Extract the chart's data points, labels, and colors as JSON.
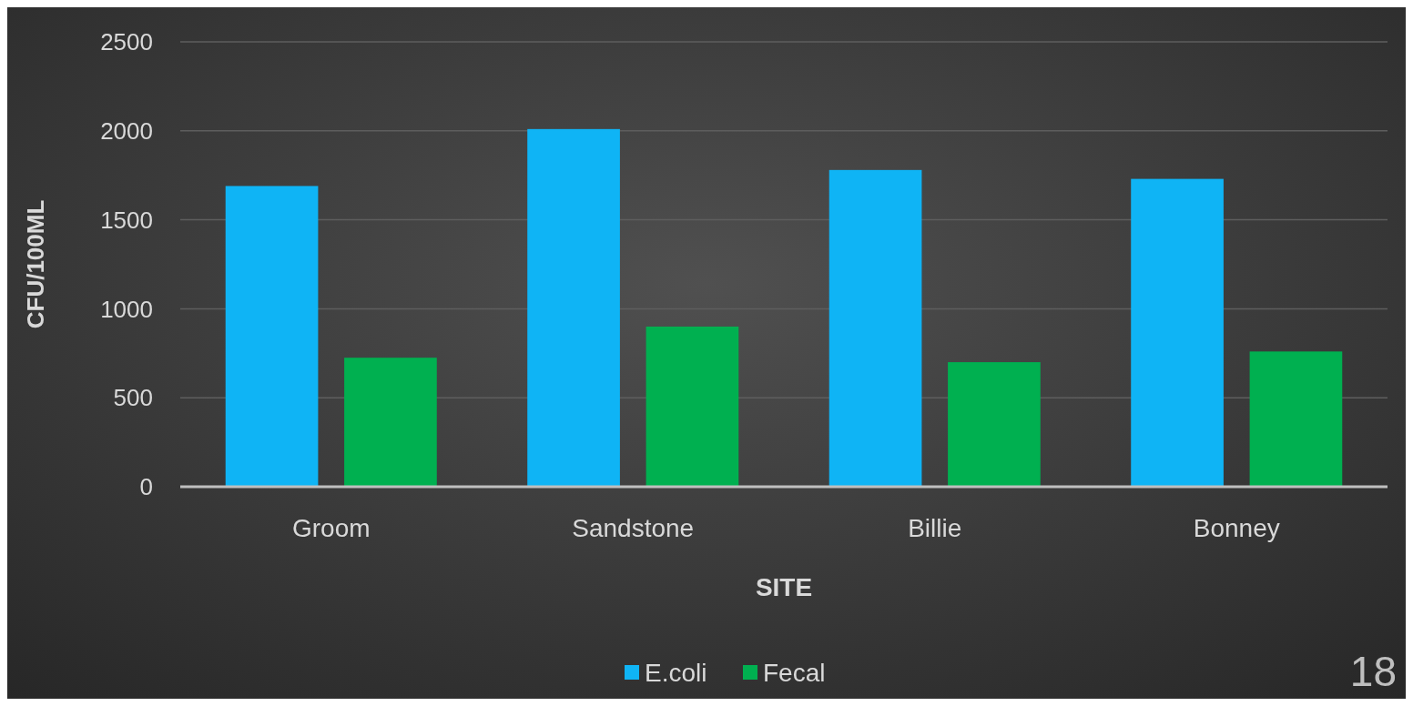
{
  "chart_data": {
    "type": "bar",
    "xlabel": "SITE",
    "ylabel": "CFU/100ML",
    "categories": [
      "Groom",
      "Sandstone",
      "Billie",
      "Bonney"
    ],
    "series": [
      {
        "name": "E.coli",
        "color": "#0fb4f5",
        "values": [
          1690,
          2010,
          1780,
          1730
        ]
      },
      {
        "name": "Fecal",
        "color": "#00b050",
        "values": [
          725,
          900,
          700,
          760
        ]
      }
    ],
    "ylim": [
      0,
      2500
    ],
    "yticks": [
      0,
      500,
      1000,
      1500,
      2000,
      2500
    ],
    "grid": "y",
    "legend": "bottom",
    "annotations": [
      "18"
    ]
  }
}
